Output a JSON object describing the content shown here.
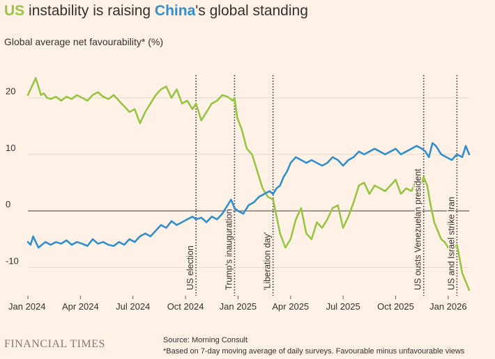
{
  "title": {
    "us": "US",
    "part1": " instability is raising ",
    "china": "China",
    "part2": "'s global standing"
  },
  "subtitle": "Global average net favourability* (%)",
  "footer": {
    "logo": "FINANCIAL TIMES",
    "source": "Source: Morning Consult",
    "note": "*Based on 7-day moving average of daily surveys. Favourable minus unfavourable views"
  },
  "colors": {
    "us": "#96c544",
    "china": "#2f8fd1",
    "grid": "#e6d9ce",
    "zero": "#66605c",
    "text": "#33302e"
  },
  "chart_data": {
    "type": "line",
    "title": "US instability is raising China's global standing",
    "ylabel": "Global average net favourability* (%)",
    "xlabel": "",
    "x_range": [
      0,
      25.2
    ],
    "ylim": [
      -15,
      25
    ],
    "y_ticks": [
      -10,
      0,
      10,
      20
    ],
    "x_ticks": [
      {
        "x": 0,
        "label": "Jan 2024"
      },
      {
        "x": 3,
        "label": "Apr 2024"
      },
      {
        "x": 6,
        "label": "Jul 2024"
      },
      {
        "x": 9,
        "label": "Oct 2024"
      },
      {
        "x": 12,
        "label": "Jan 2025"
      },
      {
        "x": 15,
        "label": "Apr 2025"
      },
      {
        "x": 18,
        "label": "Jul 2025"
      },
      {
        "x": 21,
        "label": "Oct 2025"
      },
      {
        "x": 24,
        "label": "Jan 2026"
      }
    ],
    "annotations": [
      {
        "x": 9.6,
        "label": "US election"
      },
      {
        "x": 11.8,
        "label": "Trump's inauguration"
      },
      {
        "x": 14.0,
        "label": "'Liberation day'"
      },
      {
        "x": 22.6,
        "label": "US ousts Venezuelan president"
      },
      {
        "x": 24.5,
        "label": "US and Israel strike Iran"
      }
    ],
    "series": [
      {
        "name": "US",
        "color": "#96c544",
        "x": [
          0,
          0.15,
          0.3,
          0.45,
          0.6,
          0.75,
          0.9,
          1.1,
          1.3,
          1.6,
          1.9,
          2.2,
          2.5,
          2.8,
          3.1,
          3.4,
          3.7,
          4.0,
          4.3,
          4.6,
          4.9,
          5.2,
          5.5,
          5.8,
          6.1,
          6.4,
          6.7,
          7.0,
          7.3,
          7.6,
          7.9,
          8.2,
          8.5,
          8.8,
          9.1,
          9.4,
          9.6,
          9.9,
          10.2,
          10.5,
          10.8,
          11.1,
          11.4,
          11.7,
          11.8,
          11.95,
          12.2,
          12.5,
          12.8,
          13.1,
          13.4,
          13.7,
          14.0,
          14.2,
          14.4,
          14.7,
          15.0,
          15.3,
          15.6,
          15.9,
          16.2,
          16.5,
          16.8,
          17.1,
          17.4,
          17.7,
          18.0,
          18.3,
          18.6,
          18.9,
          19.2,
          19.5,
          19.8,
          20.1,
          20.4,
          20.7,
          21.0,
          21.3,
          21.6,
          21.9,
          22.2,
          22.5,
          22.6,
          22.8,
          23.0,
          23.2,
          23.4,
          23.6,
          23.8,
          24.0,
          24.2,
          24.5,
          24.6,
          24.8,
          25.0,
          25.2
        ],
        "values": [
          20.5,
          21.5,
          22.5,
          23.5,
          22.0,
          20.5,
          20.8,
          20.0,
          19.8,
          20.2,
          19.5,
          20.2,
          19.8,
          20.5,
          20.0,
          19.5,
          20.5,
          21.0,
          20.2,
          19.8,
          20.5,
          19.5,
          18.5,
          17.5,
          18.0,
          15.5,
          17.5,
          19.0,
          20.5,
          21.5,
          22.0,
          20.0,
          21.5,
          19.0,
          19.5,
          18.0,
          19.0,
          16.0,
          17.5,
          19.0,
          19.5,
          20.5,
          20.2,
          19.5,
          20.0,
          16.5,
          14.5,
          11.0,
          10.0,
          7.0,
          4.0,
          2.5,
          2.0,
          -1.0,
          -4.0,
          -6.5,
          -5.0,
          -1.5,
          0.5,
          -4.0,
          -5.0,
          -2.0,
          -3.0,
          -1.5,
          0.5,
          1.0,
          -3.0,
          -1.0,
          1.5,
          4.5,
          5.0,
          3.0,
          4.5,
          4.0,
          3.5,
          4.5,
          5.5,
          3.0,
          4.0,
          3.5,
          5.5,
          5.0,
          6.0,
          4.5,
          1.0,
          -2.0,
          -3.5,
          -5.0,
          -5.5,
          -6.5,
          -7.0,
          -6.0,
          -7.5,
          -11.0,
          -12.5,
          -14.0
        ]
      },
      {
        "name": "China",
        "color": "#2f8fd1",
        "x": [
          0,
          0.15,
          0.3,
          0.45,
          0.6,
          0.8,
          1.0,
          1.3,
          1.6,
          1.9,
          2.2,
          2.5,
          2.8,
          3.1,
          3.4,
          3.7,
          4.0,
          4.3,
          4.6,
          4.9,
          5.2,
          5.5,
          5.8,
          6.1,
          6.4,
          6.7,
          7.0,
          7.3,
          7.6,
          7.9,
          8.2,
          8.5,
          8.8,
          9.1,
          9.4,
          9.6,
          9.9,
          10.2,
          10.5,
          10.8,
          11.1,
          11.4,
          11.6,
          11.8,
          12.0,
          12.3,
          12.6,
          12.9,
          13.2,
          13.5,
          13.8,
          14.0,
          14.2,
          14.4,
          14.6,
          14.8,
          15.0,
          15.3,
          15.6,
          15.9,
          16.2,
          16.5,
          16.8,
          17.1,
          17.4,
          17.7,
          18.0,
          18.3,
          18.6,
          18.9,
          19.2,
          19.5,
          19.8,
          20.1,
          20.4,
          20.7,
          21.0,
          21.3,
          21.6,
          21.9,
          22.2,
          22.5,
          22.7,
          22.9,
          23.1,
          23.3,
          23.6,
          23.9,
          24.2,
          24.5,
          24.8,
          25.0,
          25.2
        ],
        "values": [
          -5.5,
          -6.0,
          -4.5,
          -5.5,
          -6.5,
          -6.0,
          -5.5,
          -6.0,
          -5.5,
          -5.8,
          -5.2,
          -6.0,
          -5.5,
          -5.8,
          -6.2,
          -5.0,
          -5.8,
          -5.5,
          -6.0,
          -6.2,
          -5.5,
          -6.0,
          -5.0,
          -5.5,
          -4.5,
          -4.0,
          -4.5,
          -3.5,
          -2.5,
          -3.0,
          -1.8,
          -2.5,
          -2.0,
          -1.5,
          -1.0,
          -1.5,
          -1.2,
          -2.0,
          -1.0,
          -1.5,
          -0.5,
          1.0,
          2.0,
          0.5,
          0.0,
          -0.5,
          1.0,
          1.5,
          2.5,
          3.0,
          3.5,
          3.0,
          4.0,
          4.5,
          6.0,
          7.0,
          8.5,
          9.5,
          9.0,
          8.5,
          9.0,
          8.5,
          8.0,
          8.5,
          9.5,
          9.0,
          8.0,
          9.0,
          9.5,
          10.5,
          10.0,
          10.5,
          11.0,
          10.5,
          10.0,
          10.5,
          11.0,
          10.0,
          10.5,
          11.0,
          11.5,
          11.0,
          10.5,
          9.5,
          12.0,
          11.5,
          10.0,
          9.5,
          9.0,
          10.0,
          9.5,
          11.5,
          10.0
        ]
      }
    ]
  }
}
